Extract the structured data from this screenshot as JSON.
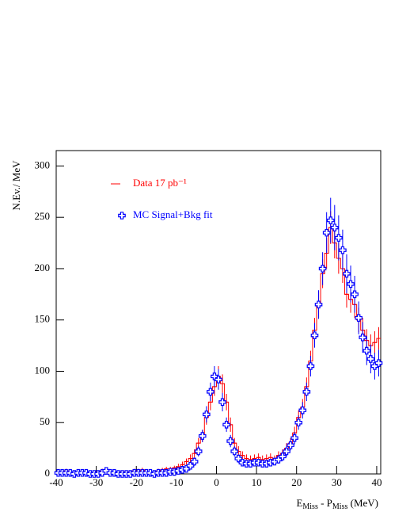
{
  "chart_data": {
    "type": "histogram",
    "y_label": "N.Ev./ MeV",
    "x_label": [
      "E",
      "Miss",
      " - P",
      "Miss",
      " (MeV)"
    ],
    "xlim": [
      -40,
      41
    ],
    "ylim": [
      0,
      315
    ],
    "xticks": [
      -40,
      -30,
      -20,
      -10,
      0,
      10,
      20,
      30,
      40
    ],
    "yticks": [
      0,
      50,
      100,
      150,
      200,
      250,
      300
    ],
    "legend_position": "upper left",
    "bins": [
      -40,
      -39,
      -38,
      -37,
      -36,
      -35,
      -34,
      -33,
      -32,
      -31,
      -30,
      -29,
      -28,
      -27,
      -26,
      -25,
      -24,
      -23,
      -22,
      -21,
      -20,
      -19,
      -18,
      -17,
      -16,
      -15,
      -14,
      -13,
      -12,
      -11,
      -10,
      -9,
      -8,
      -7,
      -6,
      -5,
      -4,
      -3,
      -2,
      -1,
      0,
      1,
      2,
      3,
      4,
      5,
      6,
      7,
      8,
      9,
      10,
      11,
      12,
      13,
      14,
      15,
      16,
      17,
      18,
      19,
      20,
      21,
      22,
      23,
      24,
      25,
      26,
      27,
      28,
      29,
      30,
      31,
      32,
      33,
      34,
      35,
      36,
      37,
      38,
      39,
      40,
      41
    ],
    "series": [
      {
        "name": "Data 17 pb⁻¹",
        "color": "#ff0000",
        "style": "step",
        "values": [
          2,
          2,
          3,
          2,
          2,
          1,
          2,
          2,
          1,
          1,
          2,
          3,
          2,
          1,
          1,
          2,
          2,
          1,
          2,
          3,
          3,
          4,
          2,
          2,
          1,
          3,
          4,
          5,
          5,
          6,
          7,
          9,
          12,
          15,
          20,
          30,
          37,
          55,
          70,
          85,
          95,
          88,
          70,
          48,
          30,
          22,
          18,
          15,
          14,
          15,
          16,
          14,
          15,
          16,
          14,
          18,
          20,
          25,
          30,
          40,
          55,
          65,
          85,
          110,
          140,
          165,
          195,
          215,
          240,
          225,
          210,
          200,
          175,
          170,
          165,
          150,
          140,
          130,
          125,
          128,
          132
        ],
        "errors": [
          1,
          1,
          2,
          1,
          1,
          1,
          1,
          1,
          1,
          1,
          1,
          2,
          1,
          1,
          1,
          1,
          1,
          1,
          1,
          2,
          2,
          2,
          1,
          1,
          1,
          2,
          2,
          2,
          2,
          2,
          3,
          3,
          3,
          4,
          4,
          5,
          6,
          7,
          8,
          9,
          10,
          9,
          8,
          7,
          5,
          5,
          4,
          4,
          4,
          4,
          4,
          4,
          4,
          4,
          4,
          4,
          4,
          5,
          5,
          6,
          7,
          8,
          9,
          10,
          12,
          13,
          14,
          15,
          16,
          15,
          15,
          14,
          13,
          13,
          13,
          12,
          12,
          11,
          11,
          11,
          11
        ]
      },
      {
        "name": "MC Signal+Bkg fit",
        "color": "#0000ff",
        "style": "markers",
        "values": [
          1,
          1,
          1,
          1,
          0,
          1,
          1,
          1,
          0,
          0,
          0,
          1,
          3,
          1,
          1,
          0,
          0,
          0,
          0,
          1,
          1,
          1,
          1,
          1,
          0,
          1,
          1,
          1,
          2,
          2,
          3,
          4,
          5,
          8,
          12,
          22,
          37,
          58,
          80,
          95,
          92,
          70,
          48,
          32,
          22,
          15,
          11,
          10,
          10,
          11,
          11,
          10,
          10,
          11,
          12,
          14,
          17,
          22,
          28,
          35,
          50,
          62,
          80,
          105,
          135,
          165,
          200,
          235,
          247,
          240,
          230,
          218,
          195,
          185,
          175,
          152,
          133,
          120,
          112,
          105,
          108
        ],
        "errors": [
          1,
          1,
          1,
          1,
          1,
          1,
          1,
          1,
          1,
          1,
          1,
          1,
          2,
          1,
          1,
          1,
          1,
          1,
          1,
          1,
          1,
          1,
          1,
          1,
          1,
          1,
          1,
          1,
          2,
          2,
          2,
          3,
          3,
          3,
          4,
          5,
          6,
          8,
          9,
          10,
          10,
          9,
          7,
          6,
          5,
          4,
          3,
          3,
          3,
          3,
          3,
          3,
          3,
          3,
          3,
          4,
          4,
          5,
          5,
          6,
          7,
          8,
          9,
          10,
          12,
          14,
          16,
          20,
          22,
          22,
          22,
          20,
          19,
          18,
          18,
          16,
          15,
          14,
          14,
          13,
          13
        ]
      }
    ]
  }
}
